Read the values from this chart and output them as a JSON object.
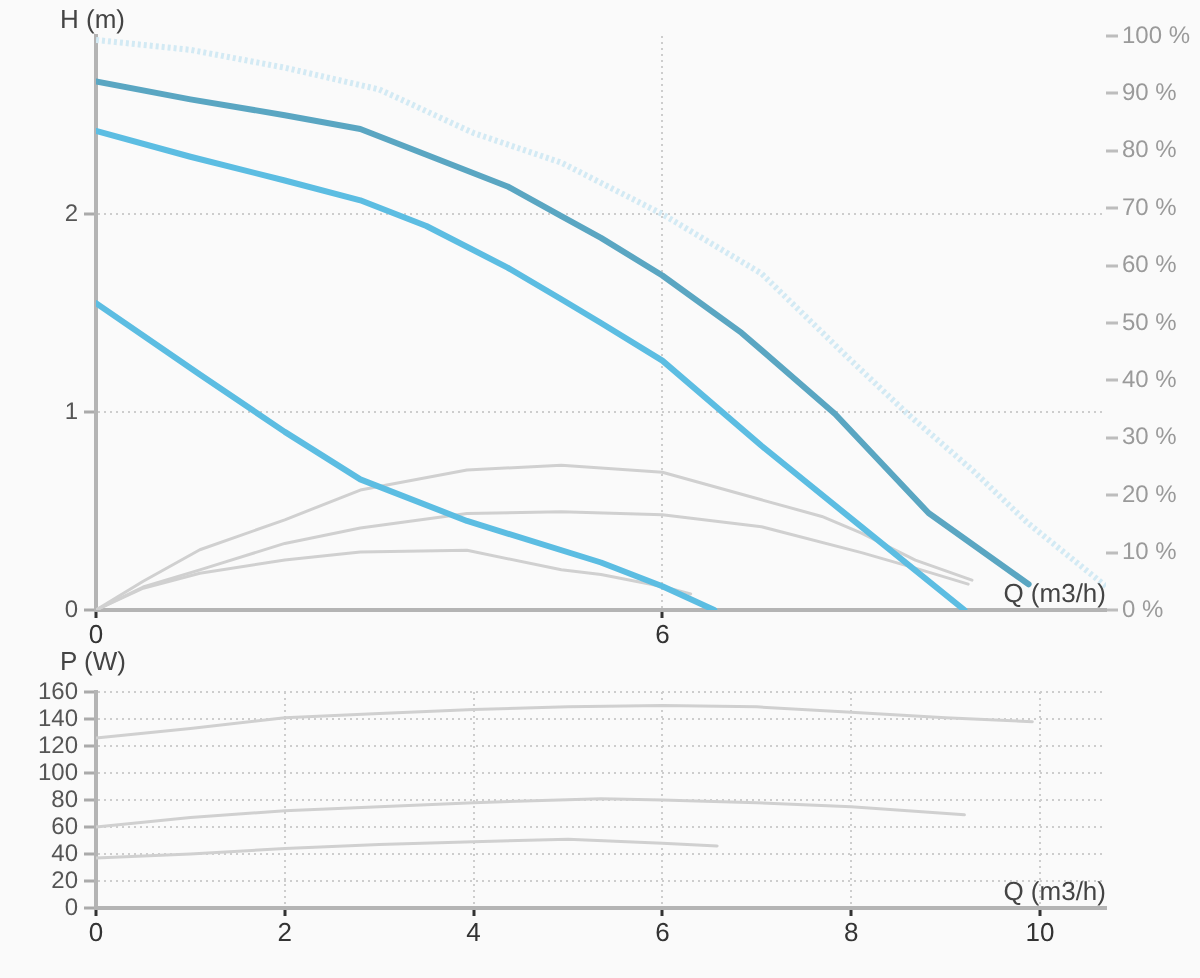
{
  "chart_data": [
    {
      "type": "line",
      "ylabel": "H (m)",
      "xlabel": "Q (m3/h)",
      "xlim": [
        0,
        10.7
      ],
      "xticks": [
        0,
        6
      ],
      "ylim": [
        0,
        2.9
      ],
      "yticks": [
        0,
        1,
        2
      ],
      "y2lim": [
        0,
        100
      ],
      "y2ticks": [
        {
          "value": 0,
          "label": "0 %"
        },
        {
          "value": 10,
          "label": "10 %"
        },
        {
          "value": 20,
          "label": "20 %"
        },
        {
          "value": 30,
          "label": "30 %"
        },
        {
          "value": 40,
          "label": "40 %"
        },
        {
          "value": 50,
          "label": "50 %"
        },
        {
          "value": 60,
          "label": "60 %"
        },
        {
          "value": 70,
          "label": "70 %"
        },
        {
          "value": 80,
          "label": "80 %"
        },
        {
          "value": 90,
          "label": "90 %"
        },
        {
          "value": 100,
          "label": "100 %"
        }
      ],
      "grid": true,
      "series": [
        {
          "color": "#d3eaf4",
          "line_style": "dotted",
          "x": [
            0,
            1,
            2,
            3,
            4,
            4.93,
            6,
            7.05,
            8,
            8.6,
            9.3,
            9.87,
            10.7
          ],
          "values": [
            2.88,
            2.83,
            2.74,
            2.63,
            2.41,
            2.26,
            2.0,
            1.7,
            1.26,
            0.99,
            0.7,
            0.44,
            0.12
          ]
        },
        {
          "color": "#5aa6c2",
          "x": [
            0,
            1,
            2,
            2.8,
            3.5,
            4.36,
            4.93,
            5.35,
            6,
            6.84,
            7.83,
            8.82,
            9.88
          ],
          "values": [
            2.67,
            2.58,
            2.5,
            2.43,
            2.3,
            2.14,
            1.99,
            1.88,
            1.69,
            1.4,
            0.99,
            0.49,
            0.13
          ]
        },
        {
          "color": "#5cbde2",
          "x": [
            0,
            1,
            2,
            2.8,
            3.5,
            4.36,
            4.93,
            5.35,
            6,
            7.05,
            8.11,
            9.2
          ],
          "values": [
            2.42,
            2.29,
            2.17,
            2.07,
            1.94,
            1.73,
            1.57,
            1.45,
            1.26,
            0.83,
            0.42,
            0
          ]
        },
        {
          "color": "#5cbde2",
          "x": [
            0,
            1.1,
            2,
            2.8,
            3.93,
            5.35,
            6,
            6.55
          ],
          "values": [
            1.55,
            1.19,
            0.9,
            0.66,
            0.45,
            0.24,
            0.12,
            0
          ]
        },
        {
          "color": "#d0d0d0",
          "axis": "y2",
          "x": [
            0,
            0.5,
            1.1,
            2,
            2.8,
            3.93,
            4.93,
            6,
            7.05,
            7.69,
            8.11,
            8.68,
            9.28
          ],
          "values": [
            0,
            5,
            10.5,
            15.7,
            20.9,
            24.4,
            25.2,
            24,
            19.2,
            16.3,
            13.4,
            8.7,
            5.2
          ]
        },
        {
          "color": "#d0d0d0",
          "axis": "y2",
          "x": [
            0,
            0.5,
            1.1,
            2,
            2.8,
            3.93,
            4.93,
            6,
            7.05,
            8.11,
            8.68,
            9.24
          ],
          "values": [
            0,
            4,
            7,
            11.6,
            14.3,
            16.8,
            17.1,
            16.6,
            14.5,
            10,
            7.3,
            4.5
          ]
        },
        {
          "color": "#d0d0d0",
          "axis": "y2",
          "x": [
            0,
            0.5,
            1.1,
            2,
            2.8,
            3.93,
            4.93,
            5.35,
            6,
            6.3
          ],
          "values": [
            0,
            3.8,
            6.4,
            8.7,
            10.1,
            10.4,
            7,
            6.2,
            4.1,
            2.8
          ]
        }
      ]
    },
    {
      "type": "line",
      "ylabel": "P (W)",
      "xlabel": "Q (m3/h)",
      "xlim": [
        0,
        10.7
      ],
      "xticks": [
        0,
        2,
        4,
        6,
        8,
        10
      ],
      "ylim": [
        0,
        160
      ],
      "yticks": [
        0,
        20,
        40,
        60,
        80,
        100,
        120,
        140,
        160
      ],
      "grid": true,
      "series": [
        {
          "color": "#d0d0d0",
          "x": [
            0,
            1,
            2,
            3,
            4,
            5,
            6,
            7,
            8,
            9,
            9.92
          ],
          "values": [
            126,
            133,
            141,
            144,
            147,
            149,
            150,
            149,
            145,
            141,
            138
          ]
        },
        {
          "color": "#d0d0d0",
          "x": [
            0,
            1,
            2,
            3,
            4,
            5.35,
            6,
            7,
            8,
            9.2
          ],
          "values": [
            60,
            67,
            72,
            75,
            78,
            81,
            80,
            78,
            75,
            69
          ]
        },
        {
          "color": "#d0d0d0",
          "x": [
            0,
            1,
            2,
            3,
            4,
            5,
            6,
            6.58
          ],
          "values": [
            37,
            40,
            44,
            47,
            49,
            51,
            48,
            46
          ]
        }
      ]
    }
  ]
}
